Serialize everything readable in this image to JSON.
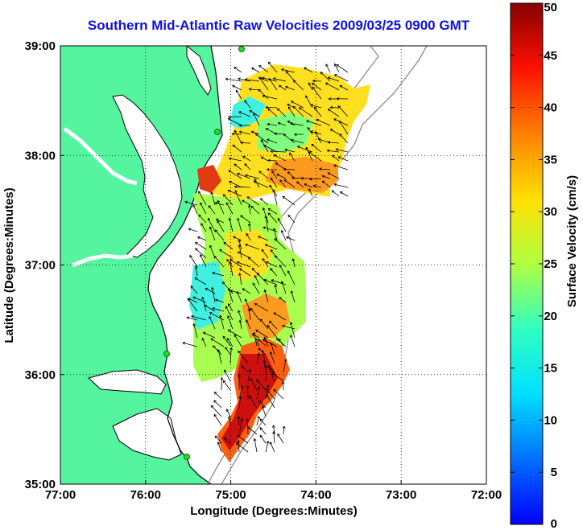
{
  "title": "Southern Mid-Atlantic Raw Velocities 2009/03/25 0900 GMT",
  "map": {
    "xlabel": "Longitude (Degrees:Minutes)",
    "ylabel": "Latitude (Degrees:Minutes)",
    "lon_range": [
      -77,
      -72
    ],
    "lat_range": [
      35,
      39
    ],
    "x_ticks": [
      {
        "value": -77,
        "label": "77:00"
      },
      {
        "value": -76,
        "label": "76:00"
      },
      {
        "value": -75,
        "label": "75:00"
      },
      {
        "value": -74,
        "label": "74:00"
      },
      {
        "value": -73,
        "label": "73:00"
      },
      {
        "value": -72,
        "label": "72:00"
      }
    ],
    "y_ticks": [
      {
        "value": 39,
        "label": "39:00"
      },
      {
        "value": 38,
        "label": "38:00"
      },
      {
        "value": 37,
        "label": "37:00"
      },
      {
        "value": 36,
        "label": "36:00"
      },
      {
        "value": 35,
        "label": "35:00"
      }
    ],
    "grid": "dotted",
    "land_color": "#55f5a0",
    "coastline_color": "#000000",
    "isobath_color": "#8c8c8c",
    "station_color": "#22dd22"
  },
  "colorbar": {
    "label": "Surface Velocity (cm/s)",
    "min": 0,
    "max": 50,
    "ticks": [
      "0",
      "5",
      "10",
      "15",
      "20",
      "25",
      "30",
      "35",
      "40",
      "45",
      "50"
    ],
    "colormap": "jet"
  }
}
